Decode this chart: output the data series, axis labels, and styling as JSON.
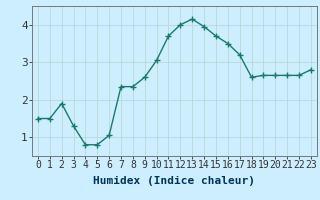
{
  "x": [
    0,
    1,
    2,
    3,
    4,
    5,
    6,
    7,
    8,
    9,
    10,
    11,
    12,
    13,
    14,
    15,
    16,
    17,
    18,
    19,
    20,
    21,
    22,
    23
  ],
  "y": [
    1.5,
    1.5,
    1.9,
    1.3,
    0.8,
    0.8,
    1.05,
    2.35,
    2.35,
    2.6,
    3.05,
    3.7,
    4.0,
    4.15,
    3.95,
    3.7,
    3.5,
    3.2,
    2.6,
    2.65,
    2.65,
    2.65,
    2.65,
    2.8
  ],
  "line_color": "#1a7a6a",
  "marker": "+",
  "marker_size": 4,
  "background_color": "#cceeff",
  "grid_color": "#b8d8d8",
  "xlabel": "Humidex (Indice chaleur)",
  "ylim": [
    0.5,
    4.5
  ],
  "xlim": [
    -0.5,
    23.5
  ],
  "yticks": [
    1,
    2,
    3,
    4
  ],
  "xticks": [
    0,
    1,
    2,
    3,
    4,
    5,
    6,
    7,
    8,
    9,
    10,
    11,
    12,
    13,
    14,
    15,
    16,
    17,
    18,
    19,
    20,
    21,
    22,
    23
  ],
  "xlabel_fontsize": 8,
  "tick_fontsize": 7,
  "line_width": 1.0
}
